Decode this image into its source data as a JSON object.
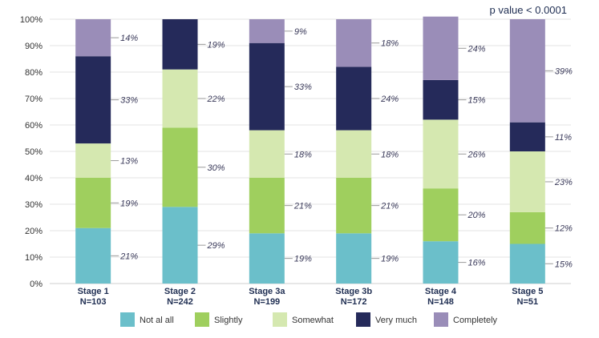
{
  "annotation": "p value < 0.0001",
  "chart_data": {
    "type": "bar",
    "stacked": true,
    "percent": true,
    "categories": [
      "Stage 1",
      "Stage 2",
      "Stage 3a",
      "Stage 3b",
      "Stage 4",
      "Stage 5"
    ],
    "n_labels": [
      "N=103",
      "N=242",
      "N=199",
      "N=172",
      "N=148",
      "N=51"
    ],
    "series": [
      {
        "name": "Not al all",
        "color": "#6bbfca",
        "values": [
          21,
          29,
          19,
          19,
          16,
          15
        ]
      },
      {
        "name": "Slightly",
        "color": "#9fcf5e",
        "values": [
          19,
          30,
          21,
          21,
          20,
          12
        ]
      },
      {
        "name": "Somewhat",
        "color": "#d5e8b0",
        "values": [
          13,
          22,
          18,
          18,
          26,
          23
        ]
      },
      {
        "name": "Very much",
        "color": "#252a5a",
        "values": [
          33,
          19,
          33,
          24,
          15,
          11
        ]
      },
      {
        "name": "Completely",
        "color": "#9a8db8",
        "values": [
          14,
          0,
          9,
          18,
          24,
          39
        ]
      }
    ],
    "data_labels": [
      [
        "21%",
        "19%",
        "13%",
        "33%",
        "14%"
      ],
      [
        "29%",
        "30%",
        "22%",
        "19%",
        ""
      ],
      [
        "19%",
        "21%",
        "18%",
        "33%",
        "9%"
      ],
      [
        "19%",
        "21%",
        "18%",
        "24%",
        "18%"
      ],
      [
        "16%",
        "20%",
        "26%",
        "15%",
        "24%"
      ],
      [
        "15%",
        "12%",
        "23%",
        "11%",
        "39%"
      ]
    ],
    "yticks": [
      "0%",
      "10%",
      "20%",
      "30%",
      "40%",
      "50%",
      "60%",
      "70%",
      "80%",
      "90%",
      "100%"
    ],
    "ylim": [
      0,
      100
    ],
    "grid": true,
    "legend": "bottom"
  }
}
